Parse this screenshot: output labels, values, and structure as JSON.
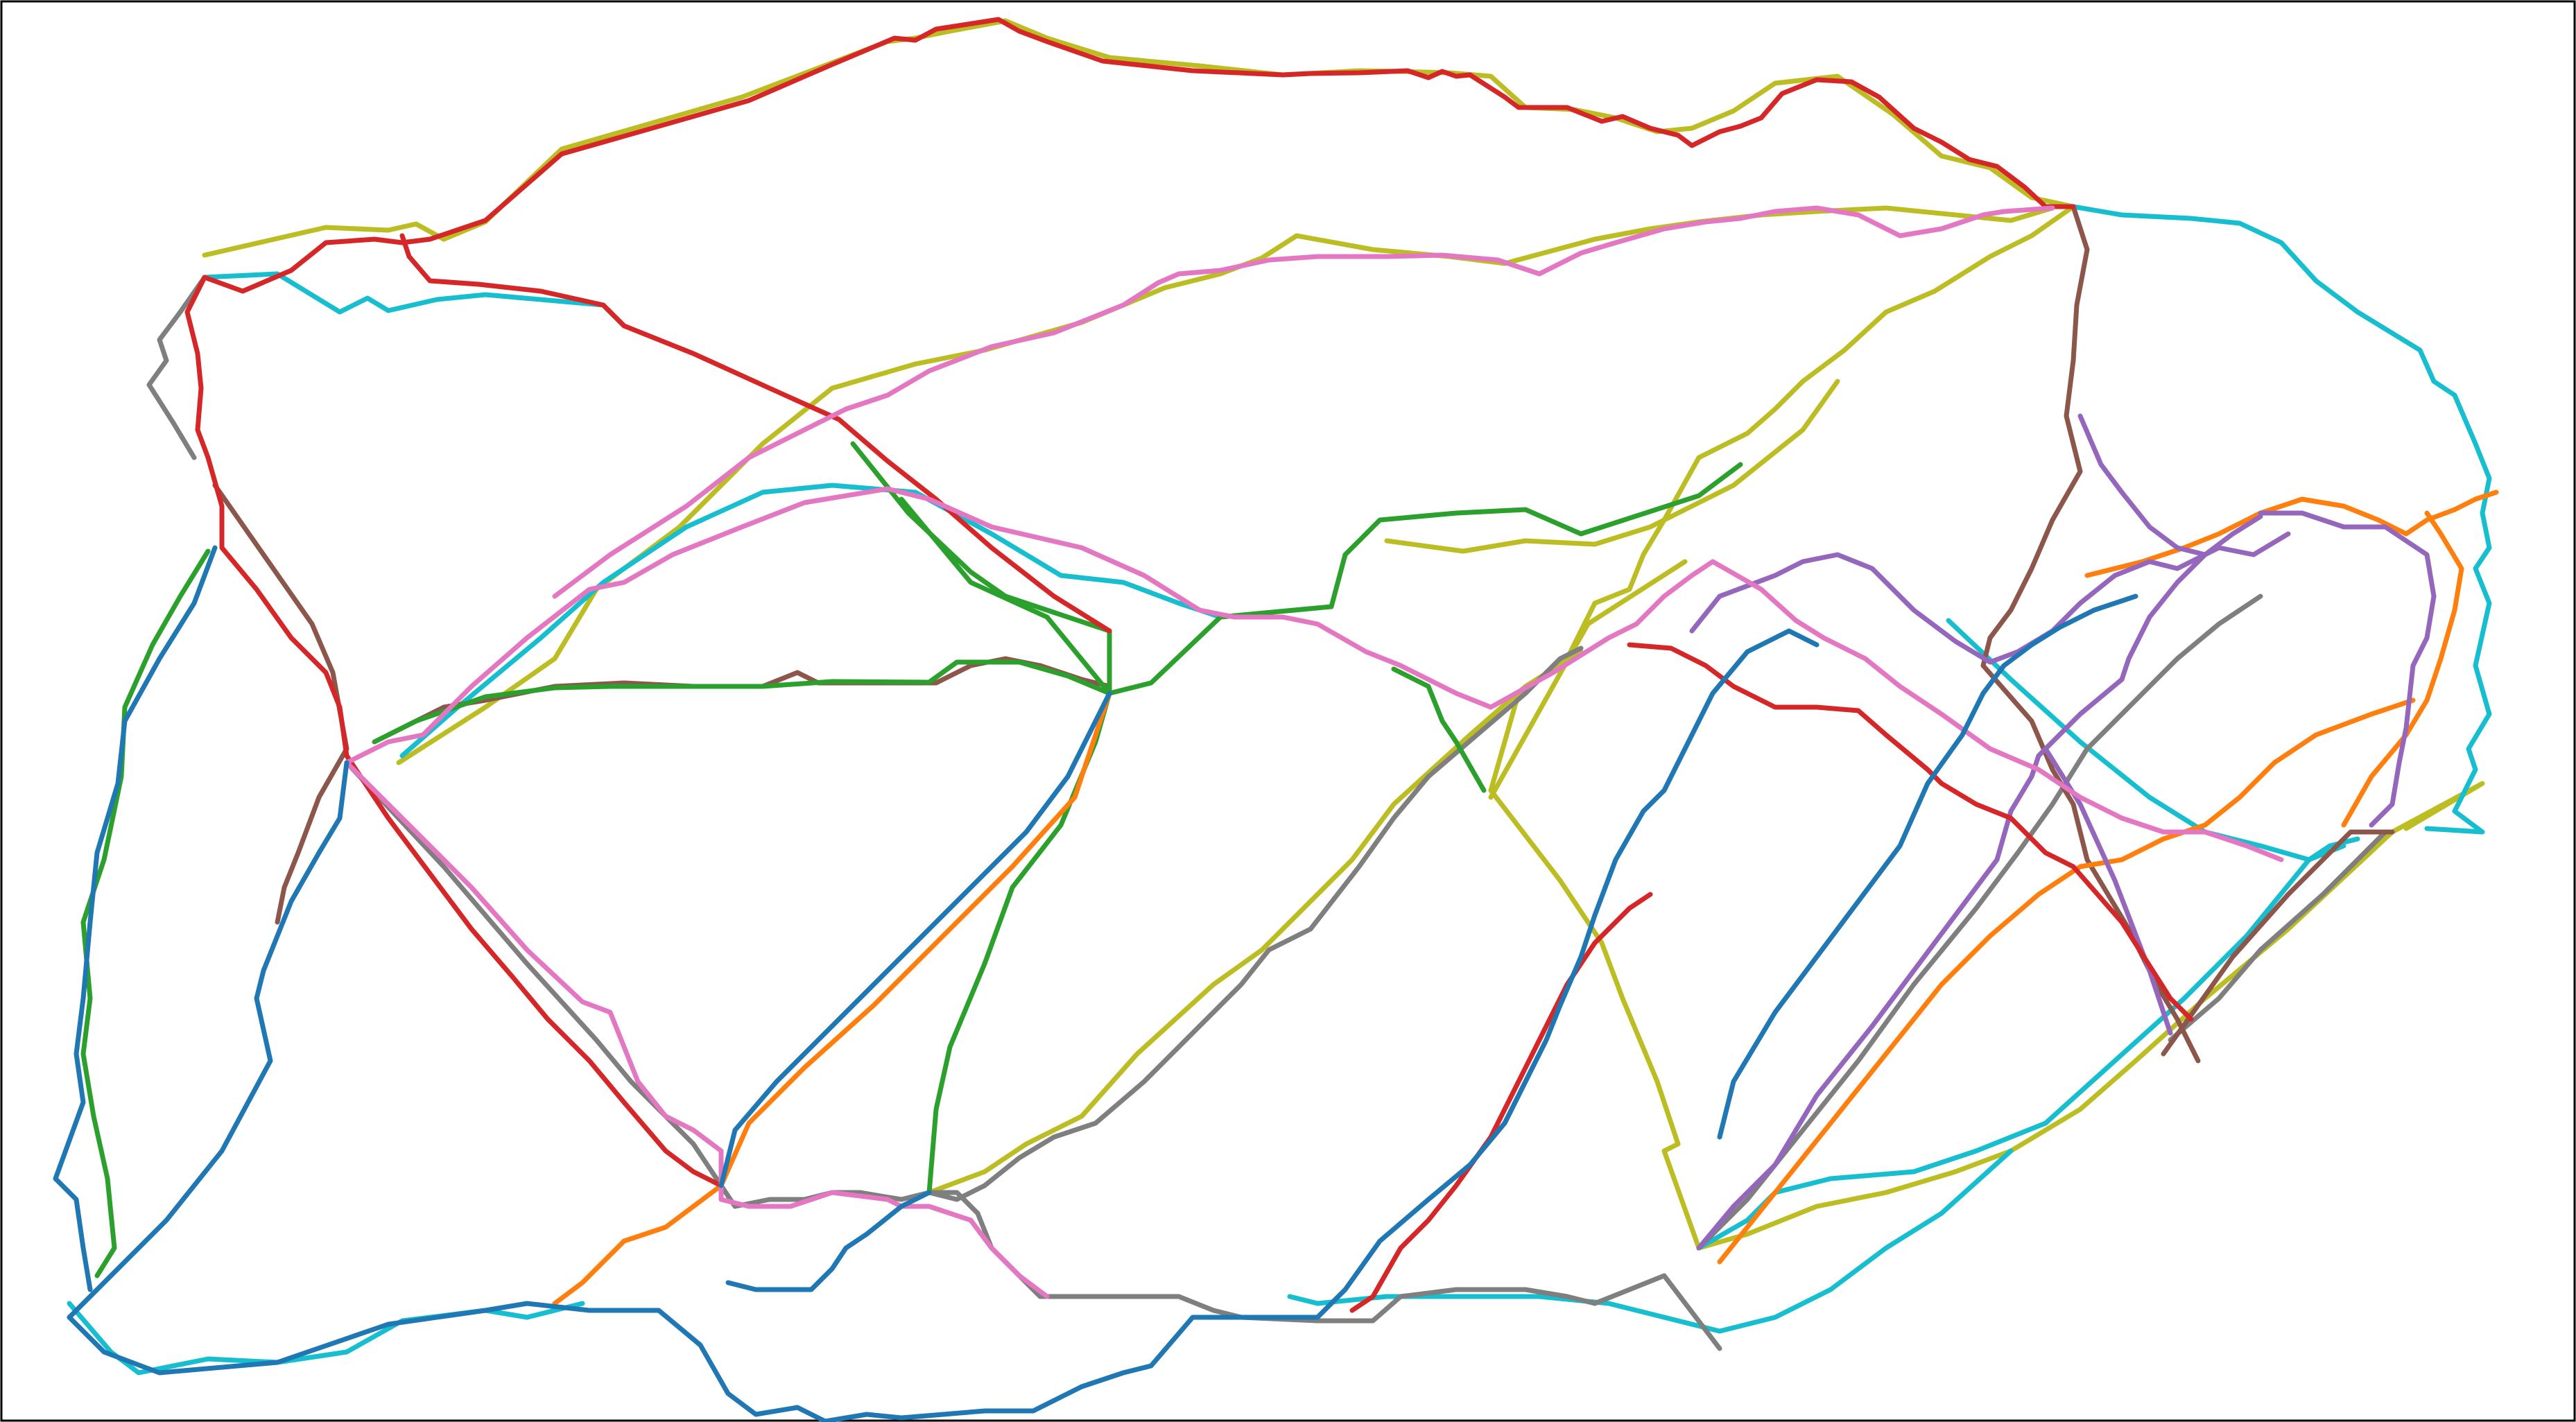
{
  "diagram": {
    "type": "route-network",
    "background": "#ffffff",
    "frame_color": "#000000",
    "routes": [
      {
        "color": "#bcbd22",
        "label": "olive"
      },
      {
        "color": "#17becf",
        "label": "cyan"
      },
      {
        "color": "#7f7f7f",
        "label": "gray"
      },
      {
        "color": "#8c564b",
        "label": "brown"
      },
      {
        "color": "#2ca02c",
        "label": "green"
      },
      {
        "color": "#ff7f0e",
        "label": "orange"
      },
      {
        "color": "#9467bd",
        "label": "purple"
      },
      {
        "color": "#d62728",
        "label": "red"
      },
      {
        "color": "#e377c2",
        "label": "pink"
      },
      {
        "color": "#1f77b4",
        "label": "blue"
      }
    ]
  }
}
